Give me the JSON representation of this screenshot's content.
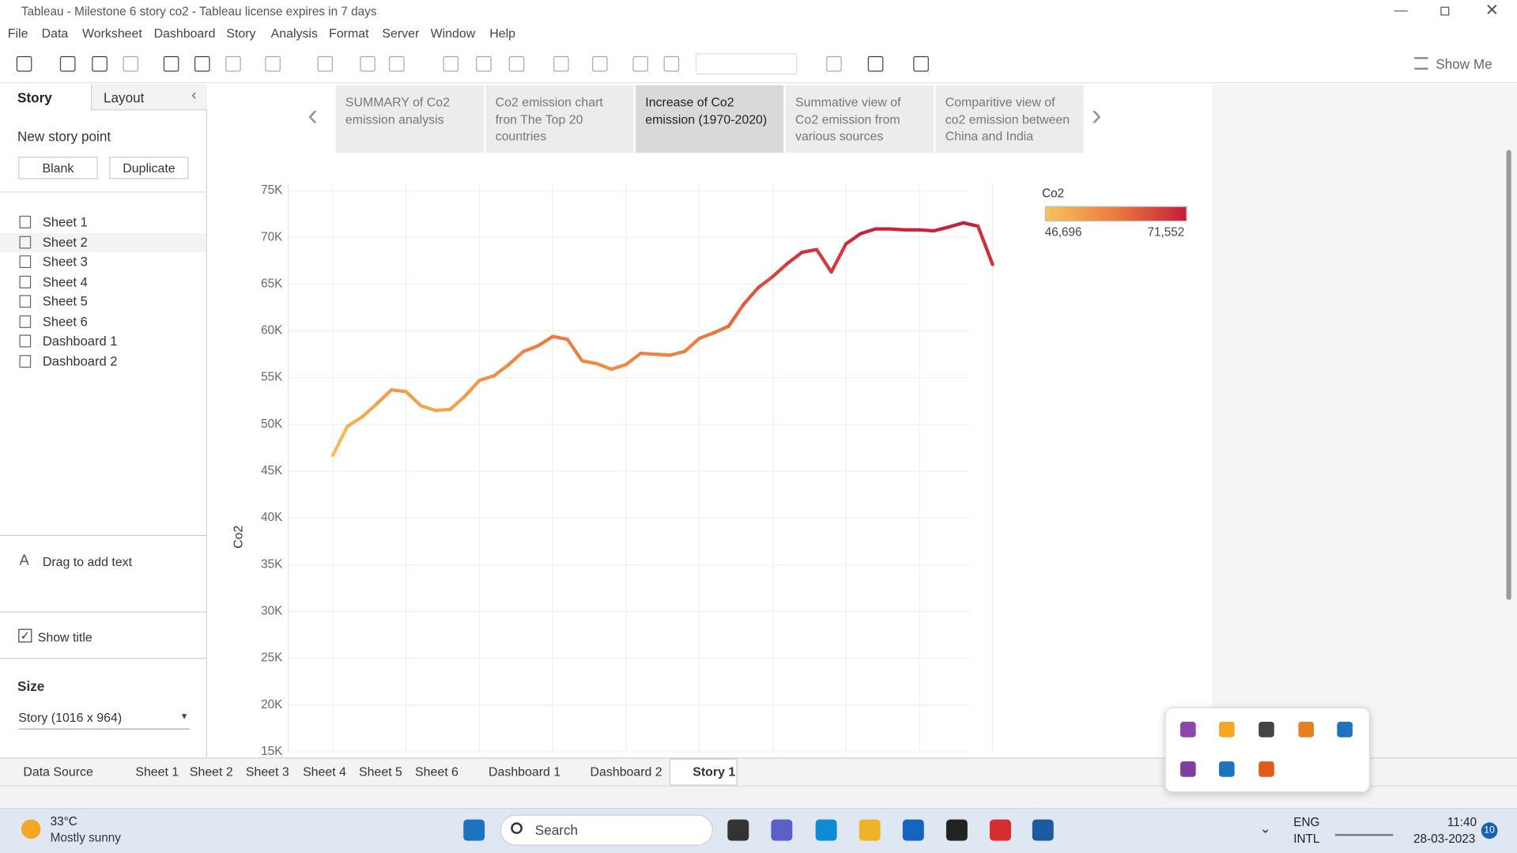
{
  "window": {
    "title": "Tableau - Milestone 6 story  co2 - Tableau license expires in 7 days"
  },
  "menu": [
    "File",
    "Data",
    "Worksheet",
    "Dashboard",
    "Story",
    "Analysis",
    "Format",
    "Server",
    "Window",
    "Help"
  ],
  "toolbar": {
    "show_me": "Show Me"
  },
  "sidebar": {
    "tabs": [
      "Story",
      "Layout"
    ],
    "new_story_point": "New story point",
    "buttons": [
      "Blank",
      "Duplicate"
    ],
    "sheets": [
      "Sheet 1",
      "Sheet 2",
      "Sheet 3",
      "Sheet 4",
      "Sheet 5",
      "Sheet 6",
      "Dashboard 1",
      "Dashboard 2"
    ],
    "drag_text": "Drag to add text",
    "show_title": "Show title",
    "size_label": "Size",
    "size_value": "Story (1016 x 964)"
  },
  "story_points": [
    "SUMMARY of Co2 emission analysis",
    "Co2 emission chart fron The Top 20 countries",
    "Increase of Co2 emission (1970-2020)",
    "Summative view of Co2 emission from various sources",
    "Comparitive view of co2 emission between China and India"
  ],
  "chart_data": {
    "type": "line",
    "y_label": "Co2",
    "values": [
      46696,
      49800,
      50800,
      52200,
      53700,
      53500,
      52000,
      51500,
      51600,
      53000,
      54700,
      55200,
      56400,
      57800,
      58400,
      59400,
      59100,
      56800,
      56500,
      55900,
      56400,
      57600,
      57500,
      57400,
      57800,
      59200,
      59800,
      60500,
      62800,
      64600,
      65800,
      67200,
      68400,
      68700,
      66300,
      69300,
      70400,
      70900,
      70900,
      70800,
      70800,
      70700,
      71100,
      71552,
      71200,
      67100
    ],
    "ylim": [
      15000,
      75000
    ],
    "yticks": [
      {
        "value": 15000,
        "label": "15K"
      },
      {
        "value": 20000,
        "label": "20K"
      },
      {
        "value": 25000,
        "label": "25K"
      },
      {
        "value": 30000,
        "label": "30K"
      },
      {
        "value": 35000,
        "label": "35K"
      },
      {
        "value": 40000,
        "label": "40K"
      },
      {
        "value": 45000,
        "label": "45K"
      },
      {
        "value": 50000,
        "label": "50K"
      },
      {
        "value": 55000,
        "label": "55K"
      },
      {
        "value": 60000,
        "label": "60K"
      },
      {
        "value": 65000,
        "label": "65K"
      },
      {
        "value": 70000,
        "label": "70K"
      },
      {
        "value": 75000,
        "label": "75K"
      }
    ],
    "grid": true,
    "legend": {
      "title": "Co2",
      "min": {
        "value": 46696,
        "label": "46,696"
      },
      "max": {
        "value": 71552,
        "label": "71,552"
      },
      "colors": [
        "#f7c35c",
        "#ec7a3f",
        "#c41e3a"
      ]
    }
  },
  "tabs": [
    "Data Source",
    "Sheet 1",
    "Sheet 2",
    "Sheet 3",
    "Sheet 4",
    "Sheet 5",
    "Sheet 6",
    "Dashboard 1",
    "Dashboard 2",
    "Story 1"
  ],
  "taskbar": {
    "temperature": "33°C",
    "weather": "Mostly sunny",
    "search": "Search",
    "lang": "ENG",
    "region": "INTL",
    "time": "11:40",
    "date": "28-03-2023",
    "badge": "10"
  }
}
